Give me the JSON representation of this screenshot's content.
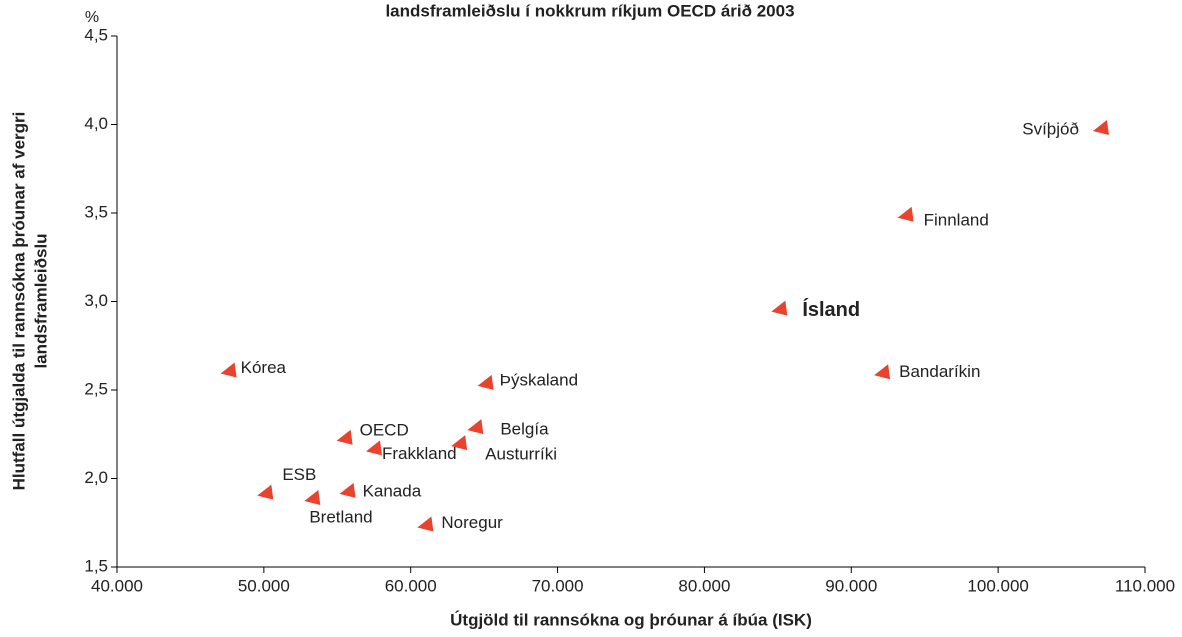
{
  "chart_data": {
    "type": "scatter",
    "title": "landsframleiðslu í nokkrum ríkjum OECD árið 2003",
    "y_unit": "%",
    "y_label": [
      "Hlutfall útgjalda til rannsókna þróunar af vergri",
      "landsframleiðslu"
    ],
    "x_label": "Útgjöld til rannsókna og þróunar á íbúa (ISK)",
    "color": "#e8432e",
    "xlim": [
      40000,
      110000
    ],
    "ylim": [
      1.5,
      4.5
    ],
    "xticks": [
      {
        "value": 40000,
        "label": "40.000"
      },
      {
        "value": 50000,
        "label": "50.000"
      },
      {
        "value": 60000,
        "label": "60.000"
      },
      {
        "value": 70000,
        "label": "70.000"
      },
      {
        "value": 80000,
        "label": "80.000"
      },
      {
        "value": 90000,
        "label": "90.000"
      },
      {
        "value": 100000,
        "label": "100.000"
      },
      {
        "value": 110000,
        "label": "110.000"
      }
    ],
    "yticks": [
      {
        "value": 1.5,
        "label": "1,5"
      },
      {
        "value": 2.0,
        "label": "2,0"
      },
      {
        "value": 2.5,
        "label": "2,5"
      },
      {
        "value": 3.0,
        "label": "3,0"
      },
      {
        "value": 3.5,
        "label": "3,5"
      },
      {
        "value": 4.0,
        "label": "4,0"
      },
      {
        "value": 4.5,
        "label": "4,5"
      }
    ],
    "labels": [
      "Svíþjóð",
      "Finnland",
      "Ísland",
      "Bandaríkin",
      "Kórea",
      "Þýskaland",
      "Belgía",
      "Austurríki",
      "OECD",
      "Frakkland",
      "ESB",
      "Bretland",
      "Kanada",
      "Noregur"
    ],
    "x": [
      107000,
      93700,
      85100,
      92100,
      47600,
      65100,
      64400,
      63300,
      55500,
      57500,
      50100,
      53300,
      55700,
      61000
    ],
    "values": [
      3.98,
      3.49,
      2.96,
      2.6,
      2.61,
      2.54,
      2.29,
      2.2,
      2.23,
      2.17,
      1.92,
      1.89,
      1.93,
      1.74
    ]
  }
}
